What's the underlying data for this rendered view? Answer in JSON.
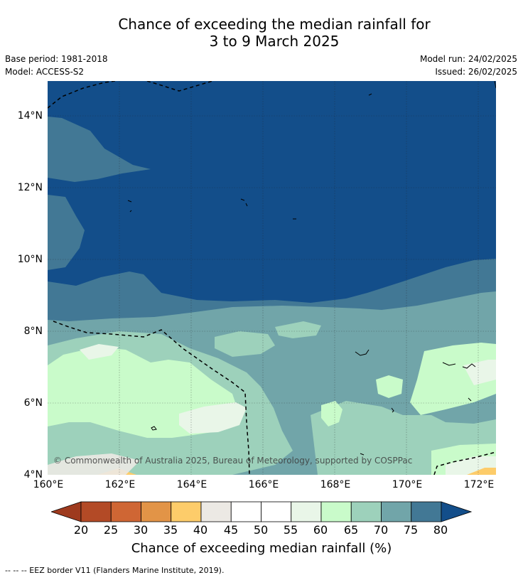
{
  "title": {
    "line1": "Chance of exceeding the median rainfall for",
    "line2": "3 to 9 March 2025"
  },
  "meta": {
    "base_period": "Base period: 1981-2018",
    "model": "Model: ACCESS-S2",
    "model_run": "Model run: 24/02/2025",
    "issued": "Issued: 26/02/2025"
  },
  "map": {
    "lat_labels": [
      "14°N",
      "12°N",
      "10°N",
      "8°N",
      "6°N",
      "4°N"
    ],
    "lon_labels": [
      "160°E",
      "162°E",
      "164°E",
      "166°E",
      "168°E",
      "170°E",
      "172°E"
    ],
    "lat_range": [
      4,
      15
    ],
    "lon_range": [
      160,
      172.5
    ],
    "copyright": "© Commonwealth of Australia 2025, Bureau of Meteorology, supported by COSPPac"
  },
  "colorbar": {
    "ticks": [
      "20",
      "25",
      "30",
      "35",
      "40",
      "45",
      "50",
      "55",
      "60",
      "65",
      "70",
      "75",
      "80"
    ],
    "colors": {
      "below20": "#9e3a1e",
      "c20_25": "#b34a26",
      "c25_30": "#cf6634",
      "c30_35": "#e29447",
      "c35_40": "#fdcc6a",
      "c40_45": "#ece9e4",
      "c45_50": "#ffffff",
      "c50_55": "#ffffff",
      "c55_60": "#e9f6e8",
      "c60_65": "#c9fbca",
      "c65_70": "#9dd1bb",
      "c70_75": "#71a5a9",
      "c75_80": "#427895",
      "above80": "#134e8a"
    },
    "title": "Chance of exceeding median rainfall (%)"
  },
  "footer": "--  --  -- EEZ border V11 (Flanders Marine Institute, 2019)."
}
